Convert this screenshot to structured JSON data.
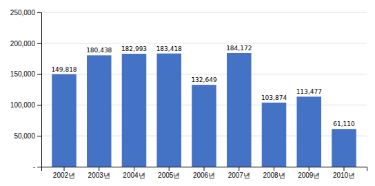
{
  "chart_data": {
    "type": "bar",
    "categories": [
      "2002년",
      "2003년",
      "2004년",
      "2005년",
      "2006년",
      "2007년",
      "2008년",
      "2009년",
      "2010년"
    ],
    "values": [
      149818,
      180438,
      182993,
      183418,
      132649,
      184172,
      103874,
      113477,
      61110
    ],
    "value_labels": [
      "149,818",
      "180,438",
      "182,993",
      "183,418",
      "132,649",
      "184,172",
      "103,874",
      "113,477",
      "61,110"
    ],
    "color": "#4472C4",
    "ylim": [
      0,
      250000
    ],
    "yticks": [
      {
        "value": 0,
        "label": "-"
      },
      {
        "value": 50000,
        "label": "50,000"
      },
      {
        "value": 100000,
        "label": "100,000"
      },
      {
        "value": 150000,
        "label": "150,000"
      },
      {
        "value": 200000,
        "label": "200,000"
      },
      {
        "value": 250000,
        "label": "250,000"
      }
    ],
    "grid": true
  }
}
